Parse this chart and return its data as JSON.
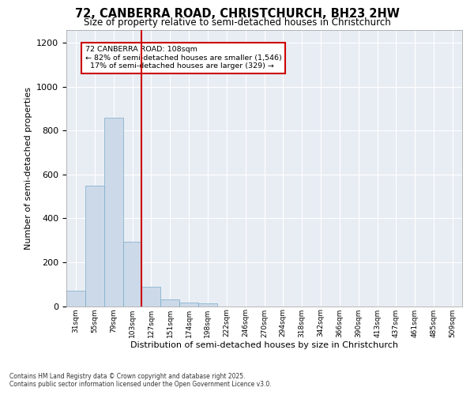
{
  "title_line1": "72, CANBERRA ROAD, CHRISTCHURCH, BH23 2HW",
  "title_line2": "Size of property relative to semi-detached houses in Christchurch",
  "xlabel": "Distribution of semi-detached houses by size in Christchurch",
  "ylabel": "Number of semi-detached properties",
  "bar_color": "#ccd9e8",
  "bar_edge_color": "#7aaac8",
  "bg_color": "#e8edf4",
  "grid_color": "#ffffff",
  "property_line_label": "72 CANBERRA ROAD: 108sqm",
  "pct_smaller": "82% of semi-detached houses are smaller (1,546)",
  "pct_larger": "17% of semi-detached houses are larger (329)",
  "annotation_box_color": "#cc0000",
  "bin_labels": [
    "31sqm",
    "55sqm",
    "79sqm",
    "103sqm",
    "127sqm",
    "151sqm",
    "174sqm",
    "198sqm",
    "222sqm",
    "246sqm",
    "270sqm",
    "294sqm",
    "318sqm",
    "342sqm",
    "366sqm",
    "390sqm",
    "413sqm",
    "437sqm",
    "461sqm",
    "485sqm",
    "509sqm"
  ],
  "bar_heights": [
    70,
    550,
    860,
    295,
    90,
    30,
    15,
    12,
    0,
    0,
    0,
    0,
    0,
    0,
    0,
    0,
    0,
    0,
    0,
    0,
    0
  ],
  "property_bar_index": 3,
  "ylim": [
    0,
    1260
  ],
  "yticks": [
    0,
    200,
    400,
    600,
    800,
    1000,
    1200
  ],
  "footnote_line1": "Contains HM Land Registry data © Crown copyright and database right 2025.",
  "footnote_line2": "Contains public sector information licensed under the Open Government Licence v3.0."
}
